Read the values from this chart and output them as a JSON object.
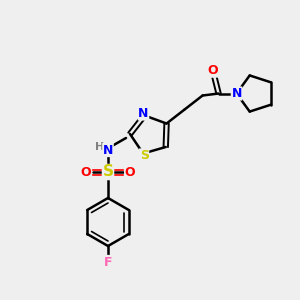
{
  "bg_color": "#efefef",
  "bond_color": "#000000",
  "atom_colors": {
    "N": "#0000ff",
    "O": "#ff0000",
    "S_sulfo": "#cccc00",
    "S_thiazole": "#cccc00",
    "F": "#ff69b4",
    "H": "#808080",
    "C": "#000000"
  },
  "font_size": 9,
  "fig_size": [
    3.0,
    3.0
  ],
  "dpi": 100
}
